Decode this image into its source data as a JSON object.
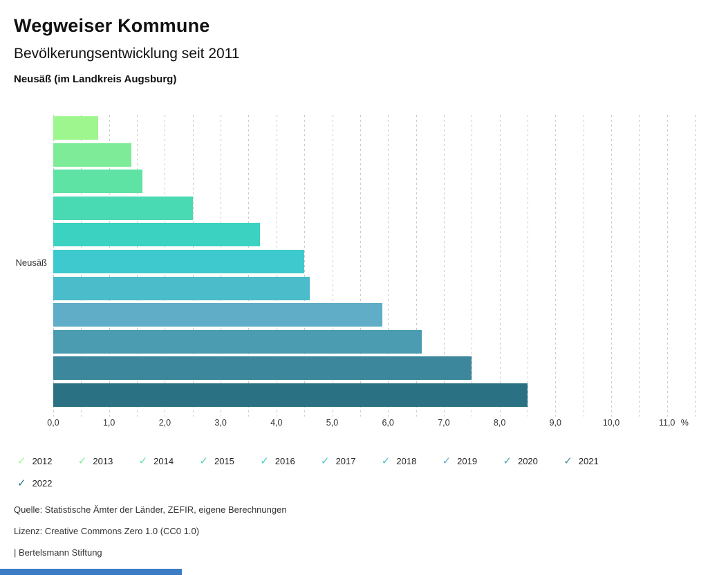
{
  "header": {
    "title": "Wegweiser Kommune",
    "subtitle": "Bevölkerungsentwicklung seit 2011",
    "region": "Neusäß (im Landkreis Augsburg)"
  },
  "chart_data": {
    "type": "bar",
    "orientation": "horizontal",
    "group_label": "Neusäß",
    "categories": [
      "2012",
      "2013",
      "2014",
      "2015",
      "2016",
      "2017",
      "2018",
      "2019",
      "2020",
      "2021",
      "2022"
    ],
    "values": [
      0.8,
      1.4,
      1.6,
      2.5,
      3.7,
      4.5,
      4.6,
      5.9,
      6.6,
      7.5,
      8.5
    ],
    "colors": [
      "#9df78e",
      "#7deb97",
      "#5fe3a4",
      "#49dab3",
      "#3bd2c2",
      "#3ec9ce",
      "#4bbcca",
      "#5fadc6",
      "#4b9cb1",
      "#3c879b",
      "#2a7183"
    ],
    "x_ticks": [
      "0,0",
      "1,0",
      "2,0",
      "3,0",
      "4,0",
      "5,0",
      "6,0",
      "7,0",
      "8,0",
      "9,0",
      "10,0",
      "11,0"
    ],
    "x_unit": "%",
    "xlim": [
      0,
      11.5
    ],
    "grid": "dashed vertical lines every 0.5",
    "legend_position": "bottom",
    "ylabel": "Neusäß",
    "value_unit": "percent change since 2011"
  },
  "legend": {
    "check_icon": "✓"
  },
  "footer": {
    "source": "Quelle: Statistische Ämter der Länder, ZEFIR, eigene Berechnungen",
    "license": "Lizenz: Creative Commons Zero 1.0 (CC0 1.0)",
    "attribution": "| Bertelsmann Stiftung"
  },
  "misc": {
    "bottom_bar_color": "#3b7cc4"
  }
}
